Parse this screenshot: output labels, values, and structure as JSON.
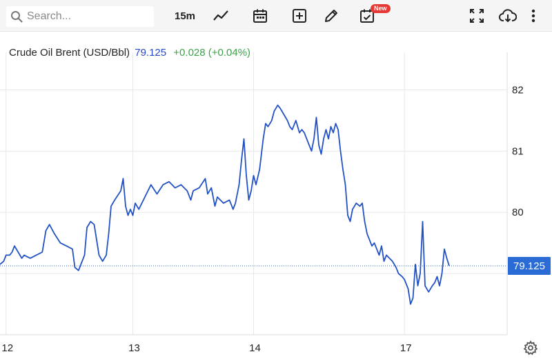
{
  "toolbar": {
    "search_placeholder": "Search...",
    "interval": "15m",
    "new_badge": "New",
    "icons": [
      "search-icon",
      "line-chart-icon",
      "calendar-icon",
      "add-indicator-icon",
      "pencil-icon",
      "calendar-check-icon",
      "fullscreen-icon",
      "cloud-download-icon",
      "more-vertical-icon"
    ]
  },
  "legend": {
    "name": "Crude Oil Brent (USD/Bbl)",
    "price": "79.125",
    "change": "+0.028 (+0.04%)"
  },
  "price_tag": "79.125",
  "colors": {
    "line": "#2151c4",
    "price_tag": "#2a6bd6",
    "change": "#3aa34a",
    "grid": "#e8e8e8"
  },
  "chart_data": {
    "type": "line",
    "title": "Crude Oil Brent (USD/Bbl)",
    "xlabel": "",
    "ylabel": "",
    "x_ticks": [
      {
        "label": "12",
        "x": 0.05
      },
      {
        "label": "13",
        "x": 1.1
      },
      {
        "label": "14",
        "x": 2.1
      },
      {
        "label": "17",
        "x": 3.35
      }
    ],
    "y_ticks": [
      80,
      81,
      82
    ],
    "xlim": [
      0.0,
      4.2
    ],
    "ylim": [
      78.0,
      82.5
    ],
    "last_value": 79.125,
    "grid": true,
    "legend": "top-left",
    "series": [
      {
        "values": [
          [
            0.0,
            79.15
          ],
          [
            0.03,
            79.2
          ],
          [
            0.05,
            79.3
          ],
          [
            0.08,
            79.3
          ],
          [
            0.1,
            79.35
          ],
          [
            0.12,
            79.45
          ],
          [
            0.15,
            79.35
          ],
          [
            0.18,
            79.25
          ],
          [
            0.2,
            79.3
          ],
          [
            0.25,
            79.25
          ],
          [
            0.3,
            79.3
          ],
          [
            0.35,
            79.35
          ],
          [
            0.38,
            79.7
          ],
          [
            0.41,
            79.8
          ],
          [
            0.45,
            79.65
          ],
          [
            0.5,
            79.5
          ],
          [
            0.55,
            79.45
          ],
          [
            0.6,
            79.4
          ],
          [
            0.62,
            79.1
          ],
          [
            0.65,
            79.05
          ],
          [
            0.7,
            79.3
          ],
          [
            0.72,
            79.75
          ],
          [
            0.75,
            79.85
          ],
          [
            0.78,
            79.8
          ],
          [
            0.8,
            79.55
          ],
          [
            0.82,
            79.3
          ],
          [
            0.85,
            79.2
          ],
          [
            0.88,
            79.3
          ],
          [
            0.9,
            79.65
          ],
          [
            0.92,
            80.1
          ],
          [
            0.95,
            80.2
          ],
          [
            1.0,
            80.35
          ],
          [
            1.02,
            80.55
          ],
          [
            1.04,
            80.1
          ],
          [
            1.06,
            79.95
          ],
          [
            1.08,
            80.05
          ],
          [
            1.1,
            79.95
          ],
          [
            1.12,
            80.15
          ],
          [
            1.15,
            80.05
          ],
          [
            1.2,
            80.25
          ],
          [
            1.25,
            80.45
          ],
          [
            1.3,
            80.3
          ],
          [
            1.35,
            80.45
          ],
          [
            1.4,
            80.5
          ],
          [
            1.45,
            80.4
          ],
          [
            1.5,
            80.45
          ],
          [
            1.55,
            80.35
          ],
          [
            1.58,
            80.2
          ],
          [
            1.6,
            80.35
          ],
          [
            1.65,
            80.4
          ],
          [
            1.7,
            80.55
          ],
          [
            1.72,
            80.3
          ],
          [
            1.75,
            80.4
          ],
          [
            1.78,
            80.1
          ],
          [
            1.8,
            80.25
          ],
          [
            1.85,
            80.15
          ],
          [
            1.9,
            80.2
          ],
          [
            1.93,
            80.05
          ],
          [
            1.95,
            80.15
          ],
          [
            1.98,
            80.45
          ],
          [
            2.0,
            80.85
          ],
          [
            2.02,
            81.2
          ],
          [
            2.04,
            80.6
          ],
          [
            2.06,
            80.2
          ],
          [
            2.08,
            80.35
          ],
          [
            2.1,
            80.6
          ],
          [
            2.12,
            80.45
          ],
          [
            2.15,
            80.7
          ],
          [
            2.18,
            81.2
          ],
          [
            2.2,
            81.45
          ],
          [
            2.22,
            81.4
          ],
          [
            2.25,
            81.5
          ],
          [
            2.27,
            81.65
          ],
          [
            2.3,
            81.75
          ],
          [
            2.32,
            81.7
          ],
          [
            2.35,
            81.6
          ],
          [
            2.38,
            81.5
          ],
          [
            2.4,
            81.4
          ],
          [
            2.42,
            81.35
          ],
          [
            2.45,
            81.5
          ],
          [
            2.48,
            81.3
          ],
          [
            2.5,
            81.35
          ],
          [
            2.52,
            81.3
          ],
          [
            2.55,
            81.15
          ],
          [
            2.58,
            81.0
          ],
          [
            2.6,
            81.2
          ],
          [
            2.62,
            81.55
          ],
          [
            2.64,
            81.1
          ],
          [
            2.66,
            80.95
          ],
          [
            2.68,
            81.2
          ],
          [
            2.7,
            81.35
          ],
          [
            2.72,
            81.2
          ],
          [
            2.74,
            81.4
          ],
          [
            2.76,
            81.3
          ],
          [
            2.78,
            81.45
          ],
          [
            2.8,
            81.35
          ],
          [
            2.82,
            81.0
          ],
          [
            2.84,
            80.7
          ],
          [
            2.86,
            80.45
          ],
          [
            2.88,
            79.95
          ],
          [
            2.9,
            79.85
          ],
          [
            2.92,
            80.05
          ],
          [
            2.95,
            80.15
          ],
          [
            2.98,
            80.1
          ],
          [
            3.0,
            80.15
          ],
          [
            3.02,
            79.85
          ],
          [
            3.04,
            79.65
          ],
          [
            3.06,
            79.55
          ],
          [
            3.08,
            79.45
          ],
          [
            3.1,
            79.5
          ],
          [
            3.12,
            79.4
          ],
          [
            3.14,
            79.3
          ],
          [
            3.16,
            79.45
          ],
          [
            3.18,
            79.2
          ],
          [
            3.2,
            79.3
          ],
          [
            3.25,
            79.2
          ],
          [
            3.28,
            79.1
          ],
          [
            3.3,
            79.0
          ],
          [
            3.33,
            78.95
          ],
          [
            3.35,
            78.9
          ],
          [
            3.38,
            78.75
          ],
          [
            3.4,
            78.5
          ],
          [
            3.42,
            78.6
          ],
          [
            3.44,
            79.15
          ],
          [
            3.46,
            78.8
          ],
          [
            3.48,
            79.0
          ],
          [
            3.5,
            79.85
          ],
          [
            3.52,
            78.8
          ],
          [
            3.55,
            78.7
          ],
          [
            3.58,
            78.8
          ],
          [
            3.6,
            78.85
          ],
          [
            3.62,
            78.95
          ],
          [
            3.64,
            78.8
          ],
          [
            3.66,
            79.0
          ],
          [
            3.68,
            79.4
          ],
          [
            3.7,
            79.25
          ],
          [
            3.72,
            79.125
          ]
        ]
      }
    ]
  }
}
